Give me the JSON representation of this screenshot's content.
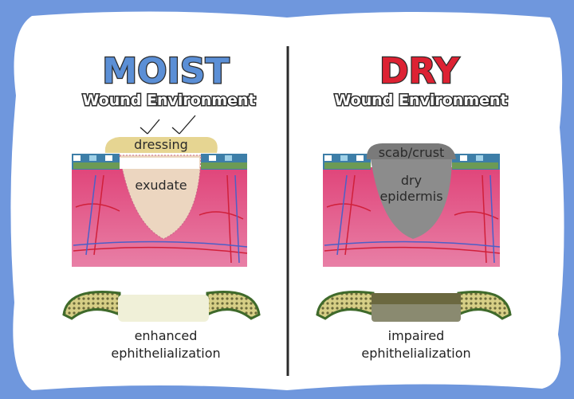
{
  "colors": {
    "background": "#6f97dd",
    "card": "#ffffff",
    "moist_title": "#5b8fd6",
    "dry_title": "#dd2233",
    "tissue": "#e4537e",
    "exudate": "#ecd6c0",
    "scab": "#8c8c8c"
  },
  "left": {
    "title": "MOIST",
    "subtitle": "Wound Environment",
    "labels": {
      "dressing": "dressing",
      "exudate": "exudate"
    },
    "caption_line1": "enhanced",
    "caption_line2": "ephithelialization"
  },
  "right": {
    "title": "DRY",
    "subtitle": "Wound Environment",
    "labels": {
      "scab": "scab/crust",
      "dry1": "dry",
      "dry2": "epidermis"
    },
    "caption_line1": "impaired",
    "caption_line2": "ephithelialization"
  }
}
